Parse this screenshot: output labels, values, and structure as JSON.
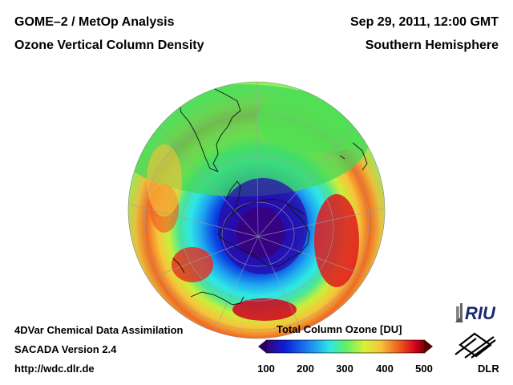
{
  "header": {
    "title_line1": "GOME–2 / MetOp Analysis",
    "title_line2": "Ozone Vertical Column Density",
    "date": "Sep 29, 2011, 12:00 GMT",
    "region": "Southern Hemisphere"
  },
  "footer": {
    "line1": "4DVar Chemical Data Assimilation",
    "line2": "SACADA Version 2.4",
    "line3": "http://wdc.dlr.de"
  },
  "colorbar": {
    "title": "Total Column Ozone [DU]",
    "ticks": [
      "100",
      "200",
      "300",
      "400",
      "500"
    ],
    "min": 100,
    "max": 500,
    "colors": [
      "#3a007a",
      "#0a1fd8",
      "#1f8cf0",
      "#2fe6e6",
      "#5ef06a",
      "#d8f03a",
      "#f6c53a",
      "#f05a1e",
      "#d4001e",
      "#7a0000"
    ]
  },
  "logos": {
    "riu": "RIU",
    "dlr": "DLR"
  },
  "map": {
    "projection": "orthographic",
    "hemisphere": "south",
    "variable": "total column ozone",
    "ozone_hole_min_du": 130,
    "collar_max_du": 470
  }
}
